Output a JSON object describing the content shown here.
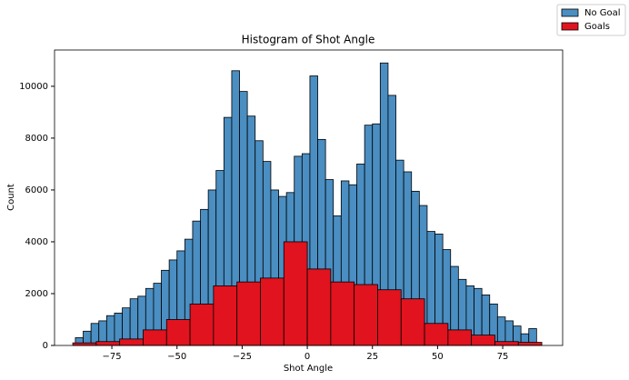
{
  "chart_data": {
    "type": "histogram",
    "title": "Histogram of Shot Angle",
    "xlabel": "Shot Angle",
    "ylabel": "Count",
    "series": [
      {
        "name": "No Goal",
        "color": "#4a8ec2",
        "bins": [
          -89,
          -86,
          -83,
          -80,
          -77,
          -74,
          -71,
          -68,
          -65,
          -62,
          -59,
          -56,
          -53,
          -50,
          -47,
          -44,
          -41,
          -38,
          -35,
          -32,
          -29,
          -26,
          -23,
          -20,
          -17,
          -14,
          -11,
          -8,
          -5,
          -2,
          1,
          4,
          7,
          10,
          13,
          16,
          19,
          22,
          25,
          28,
          31,
          34,
          37,
          40,
          43,
          46,
          49,
          52,
          55,
          58,
          61,
          64,
          67,
          70,
          73,
          76,
          79,
          82,
          85,
          88
        ],
        "values": [
          300,
          550,
          850,
          950,
          1150,
          1250,
          1450,
          1800,
          1900,
          2200,
          2400,
          2900,
          3300,
          3650,
          4100,
          4800,
          5250,
          6000,
          6750,
          8800,
          10600,
          9800,
          8850,
          7900,
          7100,
          6000,
          5750,
          5900,
          7300,
          7400,
          10400,
          7950,
          6400,
          5000,
          6350,
          6200,
          7000,
          8500,
          8550,
          10900,
          9650,
          7150,
          6700,
          5950,
          5400,
          4400,
          4300,
          3700,
          3050,
          2550,
          2300,
          2200,
          1950,
          1600,
          1100,
          950,
          750,
          450,
          650
        ]
      },
      {
        "name": "Goals",
        "color": "#e0131e",
        "bins": [
          -90,
          -81,
          -72,
          -63,
          -54,
          -45,
          -36,
          -27,
          -18,
          -9,
          0,
          9,
          18,
          27,
          36,
          45,
          54,
          63,
          72,
          81,
          90
        ],
        "values": [
          100,
          150,
          250,
          600,
          1000,
          1600,
          2300,
          2450,
          2600,
          4000,
          2950,
          2450,
          2350,
          2150,
          1800,
          850,
          600,
          400,
          150,
          120
        ]
      }
    ],
    "xlim": [
      -97,
      98
    ],
    "ylim": [
      0,
      11400
    ],
    "xticks": [
      {
        "value": -75,
        "label": "−75"
      },
      {
        "value": -50,
        "label": "−50"
      },
      {
        "value": -25,
        "label": "−25"
      },
      0,
      25,
      50,
      75
    ],
    "yticks": [
      0,
      2000,
      4000,
      6000,
      8000,
      10000
    ],
    "legend": "upper right"
  }
}
